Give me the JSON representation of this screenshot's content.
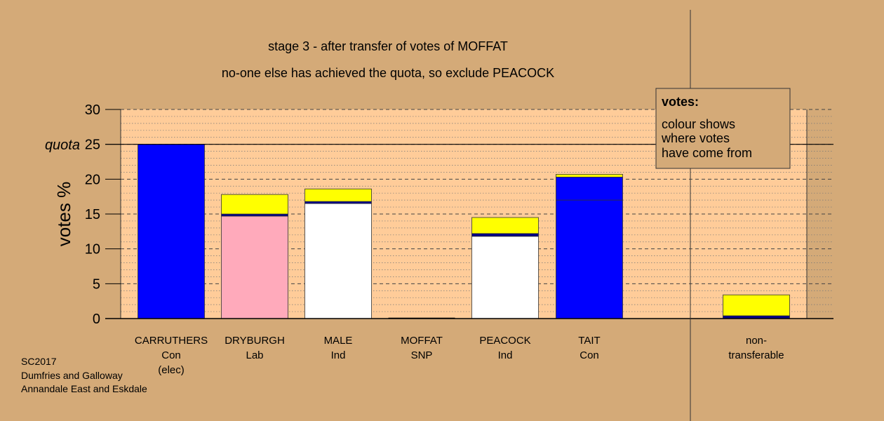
{
  "colors": {
    "background": "#d4aa78",
    "plot_background": "#ffcc99",
    "conservative": "#0000ff",
    "labour": "#ffaabb",
    "independent": "#ffffff",
    "transfer_moffat": "#ffff00",
    "transfer_carruthers": "#00008b",
    "legend_background": "#d4aa78"
  },
  "chart_data": {
    "type": "bar",
    "stacked": true,
    "title": "stage 3 - after transfer of votes of MOFFAT",
    "subtitle": "no-one else has achieved the quota, so exclude PEACOCK",
    "ylabel": "votes %",
    "ylim": [
      0,
      30
    ],
    "yticks": [
      0,
      5,
      10,
      15,
      20,
      25,
      30
    ],
    "quota": 25,
    "quota_label": "quota",
    "grid": true,
    "categories": [
      {
        "name": "CARRUTHERS",
        "party": "Con",
        "note": "(elec)"
      },
      {
        "name": "DRYBURGH",
        "party": "Lab",
        "note": ""
      },
      {
        "name": "MALE",
        "party": "Ind",
        "note": ""
      },
      {
        "name": "MOFFAT",
        "party": "SNP",
        "note": ""
      },
      {
        "name": "PEACOCK",
        "party": "Ind",
        "note": ""
      },
      {
        "name": "TAIT",
        "party": "Con",
        "note": ""
      },
      {
        "name": "non-",
        "party": "transferable",
        "note": ""
      }
    ],
    "bars": [
      {
        "category": "CARRUTHERS",
        "segments": [
          {
            "value": 25.0,
            "color": "#0000ff"
          }
        ]
      },
      {
        "category": "DRYBURGH",
        "segments": [
          {
            "value": 14.7,
            "color": "#ffaabb"
          },
          {
            "value": 0.3,
            "color": "#00008b"
          },
          {
            "value": 2.8,
            "color": "#ffff00"
          }
        ]
      },
      {
        "category": "MALE",
        "segments": [
          {
            "value": 16.5,
            "color": "#ffffff"
          },
          {
            "value": 0.3,
            "color": "#00008b"
          },
          {
            "value": 1.8,
            "color": "#ffff00"
          }
        ]
      },
      {
        "category": "MOFFAT",
        "segments": []
      },
      {
        "category": "PEACOCK",
        "segments": [
          {
            "value": 11.8,
            "color": "#ffffff"
          },
          {
            "value": 0.4,
            "color": "#00008b"
          },
          {
            "value": 2.3,
            "color": "#ffff00"
          }
        ]
      },
      {
        "category": "TAIT",
        "segments": [
          {
            "value": 17.0,
            "color": "#0000ff"
          },
          {
            "value": 3.3,
            "color": "#0000ff"
          },
          {
            "value": 0.4,
            "color": "#ffff00"
          }
        ]
      },
      {
        "category": "non-transferable",
        "segments": [
          {
            "value": 0.4,
            "color": "#00008b"
          },
          {
            "value": 3.0,
            "color": "#ffff00"
          }
        ]
      }
    ],
    "legend": {
      "title": "votes:",
      "lines": [
        "colour shows",
        "where votes",
        "have come from"
      ],
      "placement": "top-right"
    }
  },
  "source": {
    "lines": [
      "SC2017",
      "Dumfries and Galloway",
      "Annandale East and Eskdale"
    ]
  }
}
